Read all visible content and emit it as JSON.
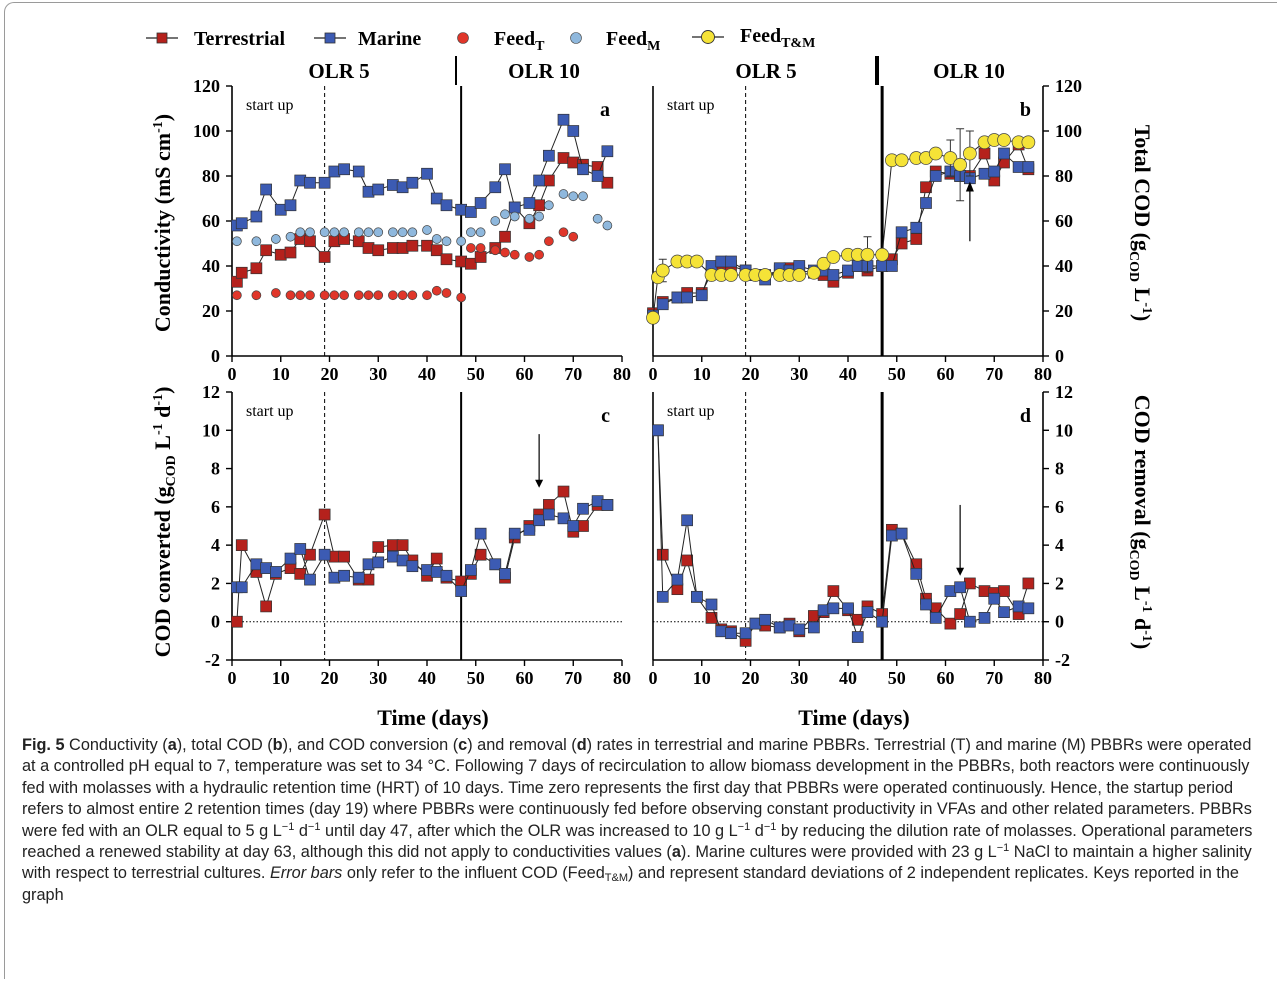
{
  "legend": {
    "terrestrial": "Terrestrial",
    "marine": "Marine",
    "feedT": "Feed",
    "feedT_sub": "T",
    "feedM": "Feed",
    "feedM_sub": "M",
    "feedTM": "Feed",
    "feedTM_sub": "T&M"
  },
  "colors": {
    "terrestrial": "#b5211c",
    "marine": "#3c5bb3",
    "feedT": "#e0362a",
    "feedM": "#8fb8dd",
    "feedTM": "#f5e337"
  },
  "phases": {
    "olr5": "OLR 5",
    "olr10": "OLR 10"
  },
  "annotations": {
    "start_up": "start up"
  },
  "xlabel": "Time (days)",
  "ylabels": {
    "a": "Conductivity (mS cm",
    "a_sup": "-1",
    "b": "Total COD (g",
    "b_sub": "COD",
    "b_unit": " L",
    "b_sup": "-1",
    "c": "COD converted (g",
    "c_sub": "COD",
    "c_unit": " L",
    "c_sup1": "-1",
    "c_d": " d",
    "c_sup2": "-1",
    "d": "COD removal (g",
    "d_sub": "COD",
    "d_unit": " L",
    "d_sup1": "-1",
    "d_d": " d",
    "d_sup2": "-1"
  },
  "chart_data": [
    {
      "panel": "a",
      "type": "scatter",
      "xlim": [
        0,
        80
      ],
      "ylim": [
        0,
        120
      ],
      "xticks": [
        0,
        10,
        20,
        30,
        40,
        50,
        60,
        70,
        80
      ],
      "yticks": [
        0,
        20,
        40,
        60,
        80,
        100,
        120
      ],
      "yaxis": "left",
      "vlines": {
        "startup": 19,
        "olr_change": 47
      },
      "series": [
        {
          "name": "Terrestrial",
          "marker": "square",
          "line": true,
          "x": [
            1,
            2,
            5,
            7,
            10,
            12,
            14,
            16,
            19,
            21,
            23,
            26,
            28,
            30,
            33,
            35,
            37,
            40,
            42,
            44,
            47,
            49,
            51,
            54,
            56,
            58,
            61,
            63,
            65,
            68,
            70,
            72,
            75,
            77
          ],
          "y": [
            33,
            37,
            39,
            47,
            45,
            46,
            52,
            51,
            44,
            51,
            52,
            51,
            48,
            47,
            48,
            48,
            49,
            49,
            47,
            43,
            42,
            41,
            44,
            48,
            53,
            66,
            59,
            67,
            78,
            88,
            86,
            85,
            84,
            77
          ]
        },
        {
          "name": "Marine",
          "marker": "square",
          "line": true,
          "x": [
            1,
            2,
            5,
            7,
            10,
            12,
            14,
            16,
            19,
            21,
            23,
            26,
            28,
            30,
            33,
            35,
            37,
            40,
            42,
            44,
            47,
            49,
            51,
            54,
            56,
            58,
            61,
            63,
            65,
            68,
            70,
            72,
            75,
            77
          ],
          "y": [
            58,
            59,
            62,
            74,
            65,
            67,
            78,
            77,
            77,
            82,
            83,
            82,
            73,
            74,
            76,
            75,
            77,
            81,
            70,
            67,
            65,
            64,
            68,
            75,
            83,
            66,
            68,
            78,
            89,
            105,
            100,
            83,
            80,
            91
          ]
        },
        {
          "name": "Feed_T",
          "marker": "circle",
          "line": false,
          "x": [
            1,
            5,
            9,
            12,
            14,
            16,
            19,
            21,
            23,
            26,
            28,
            30,
            33,
            35,
            37,
            40,
            42,
            44,
            47,
            49,
            51,
            54,
            56,
            58,
            61,
            63,
            65,
            68,
            70
          ],
          "y": [
            27,
            27,
            28,
            27,
            27,
            27,
            27,
            27,
            27,
            27,
            27,
            27,
            27,
            27,
            27,
            27,
            29,
            28,
            26,
            48,
            48,
            47,
            46,
            45,
            44,
            45,
            51,
            55,
            53
          ]
        },
        {
          "name": "Feed_M",
          "marker": "circle",
          "line": false,
          "x": [
            1,
            5,
            9,
            12,
            14,
            16,
            19,
            21,
            23,
            26,
            28,
            30,
            33,
            35,
            37,
            40,
            42,
            44,
            47,
            49,
            51,
            54,
            56,
            58,
            61,
            63,
            65,
            68,
            70,
            72,
            75,
            77
          ],
          "y": [
            51,
            51,
            52,
            53,
            55,
            55,
            55,
            55,
            55,
            55,
            55,
            55,
            55,
            55,
            55,
            56,
            52,
            51,
            51,
            55,
            55,
            60,
            63,
            62,
            61,
            62,
            67,
            72,
            71,
            71,
            61,
            58
          ]
        }
      ]
    },
    {
      "panel": "b",
      "type": "scatter",
      "xlim": [
        0,
        80
      ],
      "ylim": [
        0,
        120
      ],
      "xticks": [
        0,
        10,
        20,
        30,
        40,
        50,
        60,
        70,
        80
      ],
      "yticks": [
        0,
        20,
        40,
        60,
        80,
        100,
        120
      ],
      "yaxis": "right",
      "vlines": {
        "startup": 19,
        "olr_change": 47
      },
      "series": [
        {
          "name": "Terrestrial",
          "marker": "square",
          "line": true,
          "x": [
            0,
            2,
            5,
            7,
            10,
            12,
            14,
            16,
            19,
            21,
            23,
            26,
            28,
            30,
            33,
            35,
            37,
            40,
            42,
            44,
            47,
            49,
            51,
            54,
            56,
            58,
            61,
            63,
            65,
            68,
            70,
            72,
            75,
            77
          ],
          "y": [
            19,
            24,
            26,
            28,
            28,
            37,
            40,
            40,
            38,
            36,
            36,
            38,
            39,
            38,
            37,
            36,
            33,
            37,
            40,
            38,
            40,
            43,
            50,
            52,
            75,
            82,
            81,
            80,
            80,
            90,
            78,
            86,
            94,
            83
          ]
        },
        {
          "name": "Marine",
          "marker": "square",
          "line": true,
          "x": [
            0,
            2,
            5,
            7,
            10,
            12,
            14,
            16,
            19,
            21,
            23,
            26,
            28,
            30,
            33,
            35,
            37,
            40,
            42,
            44,
            47,
            49,
            51,
            54,
            56,
            58,
            61,
            63,
            65,
            68,
            70,
            72,
            75,
            77
          ],
          "y": [
            18,
            23,
            26,
            26,
            27,
            40,
            42,
            42,
            38,
            36,
            34,
            39,
            38,
            40,
            38,
            38,
            36,
            38,
            40,
            40,
            40,
            40,
            55,
            57,
            68,
            80,
            82,
            80,
            79,
            81,
            82,
            90,
            84,
            84
          ]
        },
        {
          "name": "Feed_T&M",
          "marker": "circle",
          "line": true,
          "x": [
            0,
            1,
            2,
            5,
            7,
            9,
            12,
            14,
            16,
            19,
            21,
            23,
            26,
            28,
            30,
            33,
            35,
            37,
            40,
            42,
            44,
            47,
            49,
            51,
            54,
            56,
            58,
            61,
            63,
            65,
            68,
            70,
            72,
            75,
            77
          ],
          "y": [
            17,
            35,
            38,
            42,
            42,
            42,
            36,
            36,
            36,
            36,
            36,
            36,
            36,
            36,
            36,
            37,
            41,
            44,
            45,
            45,
            45,
            45,
            87,
            87,
            88,
            88,
            90,
            88,
            85,
            90,
            95,
            96,
            96,
            95,
            95
          ],
          "yerr": [
            0,
            2,
            5,
            0,
            0,
            0,
            0,
            0,
            0,
            0,
            0,
            0,
            0,
            0,
            0,
            0,
            0,
            0,
            0,
            0,
            8,
            0,
            0,
            0,
            0,
            0,
            0,
            8,
            16,
            10,
            0,
            0,
            0,
            0,
            0
          ]
        }
      ]
    },
    {
      "panel": "c",
      "type": "scatter",
      "xlim": [
        0,
        80
      ],
      "ylim": [
        -2,
        12
      ],
      "xticks": [
        0,
        10,
        20,
        30,
        40,
        50,
        60,
        70,
        80
      ],
      "yticks": [
        -2,
        0,
        2,
        4,
        6,
        8,
        10,
        12
      ],
      "yaxis": "left",
      "vlines": {
        "startup": 19,
        "olr_change": 47
      },
      "series": [
        {
          "name": "Terrestrial",
          "marker": "square",
          "line": true,
          "x": [
            1,
            2,
            5,
            7,
            9,
            12,
            14,
            16,
            19,
            21,
            23,
            26,
            28,
            30,
            33,
            35,
            37,
            40,
            42,
            44,
            47,
            49,
            51,
            54,
            56,
            58,
            61,
            63,
            65,
            68,
            70,
            72,
            75,
            77
          ],
          "y": [
            0,
            4,
            2.6,
            0.8,
            2.5,
            2.8,
            2.5,
            3.5,
            5.6,
            3.4,
            3.4,
            2.2,
            2.2,
            3.9,
            4,
            4,
            3.2,
            2.4,
            3.3,
            2.3,
            2.1,
            2.5,
            3.5,
            3,
            2.3,
            4.4,
            5,
            5.6,
            6.1,
            6.8,
            4.7,
            5,
            6.1,
            6.1
          ]
        },
        {
          "name": "Marine",
          "marker": "square",
          "line": true,
          "x": [
            1,
            2,
            5,
            7,
            9,
            12,
            14,
            16,
            19,
            21,
            23,
            26,
            28,
            30,
            33,
            35,
            37,
            40,
            42,
            44,
            47,
            49,
            51,
            54,
            56,
            58,
            61,
            63,
            65,
            68,
            70,
            72,
            75,
            77
          ],
          "y": [
            1.8,
            1.8,
            3,
            2.8,
            2.6,
            3.3,
            3.8,
            2.2,
            3.5,
            2.3,
            2.4,
            2.3,
            3,
            3.1,
            3.4,
            3.2,
            2.9,
            2.7,
            2.6,
            2.4,
            1.6,
            2.7,
            4.6,
            3,
            2.5,
            4.6,
            4.8,
            5.3,
            5.6,
            5.4,
            5,
            5.9,
            6.3,
            6.1
          ]
        }
      ],
      "arrow_at_x": 63
    },
    {
      "panel": "d",
      "type": "scatter",
      "xlim": [
        0,
        80
      ],
      "ylim": [
        -2,
        12
      ],
      "xticks": [
        0,
        10,
        20,
        30,
        40,
        50,
        60,
        70,
        80
      ],
      "yticks": [
        -2,
        0,
        2,
        4,
        6,
        8,
        10,
        12
      ],
      "yaxis": "right",
      "vlines": {
        "startup": 19,
        "olr_change": 47
      },
      "series": [
        {
          "name": "Terrestrial",
          "marker": "square",
          "line": true,
          "x": [
            1,
            2,
            5,
            7,
            9,
            12,
            14,
            16,
            19,
            21,
            23,
            26,
            28,
            30,
            33,
            35,
            37,
            40,
            42,
            44,
            47,
            49,
            51,
            54,
            56,
            58,
            61,
            63,
            65,
            68,
            70,
            72,
            75,
            77
          ],
          "y": [
            10,
            3.5,
            1.7,
            3.2,
            1.3,
            0.2,
            -0.4,
            -0.5,
            -1,
            -0.1,
            -0.2,
            -0.3,
            -0.1,
            -0.5,
            0.3,
            0.5,
            1.6,
            0.6,
            0.1,
            0.8,
            0.4,
            4.8,
            4.6,
            3,
            1.2,
            0.7,
            -0.1,
            0.4,
            2,
            1.6,
            1.5,
            1.6,
            0.4,
            2
          ]
        },
        {
          "name": "Marine",
          "marker": "square",
          "line": true,
          "x": [
            1,
            2,
            5,
            7,
            9,
            12,
            14,
            16,
            19,
            21,
            23,
            26,
            28,
            30,
            33,
            35,
            37,
            40,
            42,
            44,
            47,
            49,
            51,
            54,
            56,
            58,
            61,
            63,
            65,
            68,
            70,
            72,
            75,
            77
          ],
          "y": [
            10,
            1.3,
            2.2,
            5.3,
            1.3,
            0.9,
            -0.5,
            -0.6,
            -0.6,
            -0.1,
            0.1,
            -0.3,
            -0.2,
            -0.4,
            -0.3,
            0.6,
            0.7,
            0.7,
            -0.8,
            0.5,
            0,
            4.5,
            4.6,
            2.5,
            0.9,
            0.2,
            1.6,
            1.8,
            0,
            0.2,
            1.2,
            0.5,
            0.8,
            0.7
          ]
        }
      ],
      "arrow_at_x": 63
    }
  ],
  "caption": {
    "fig": "Fig. 5",
    "t1": "  Conductivity (",
    "a": "a",
    "t2": "), total COD (",
    "b": "b",
    "t3": "), and COD conversion (",
    "c": "c",
    "t4": ") and removal (",
    "d": "d",
    "t5": ") rates in terrestrial and marine PBBRs. Terrestrial (T) and marine (M) PBBRs were operated at a controlled pH equal to 7, temperature was set to 34 °C. Following 7 days of recirculation to allow biomass development in the PBBRs, both reactors were continuously fed with molasses with a hydraulic retention time (HRT) of 10 days. Time zero represents the first day that PBBRs were operated continuously. Hence, the startup period refers to almost entire 2 retention times (day 19) where PBBRs were continuously fed before observing constant productivity in VFAs and other related parameters. PBBRs were fed with an OLR equal to 5 g L",
    "sup1": "−1",
    "t6": " d",
    "sup2": "−1",
    "t7": " until day 47, after which the OLR was increased to 10 g L",
    "sup3": "−1",
    "t8": " d",
    "sup4": "−1",
    "t9": " by reducing the dilution rate of molasses. Operational parameters reached a renewed stability at day 63, although this did not apply to conductivities values (",
    "a2": "a",
    "t10": "). Marine cultures were provided with 23 g L",
    "sup5": "−1",
    "t11": " NaCl to maintain a higher salinity with respect to terrestrial cultures. ",
    "italic": "Error bars",
    "t12": " only refer to the influent COD (Feed",
    "sub1": "T&M",
    "t13": ") and represent standard deviations of 2 independent replicates. Keys reported in the graph"
  }
}
